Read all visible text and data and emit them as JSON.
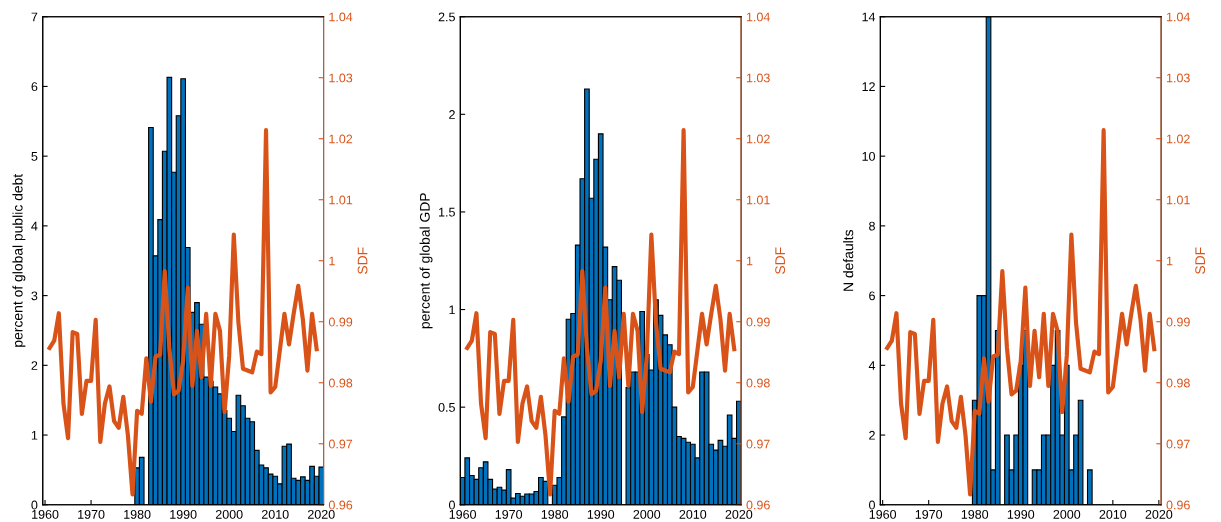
{
  "chart_data": [
    {
      "type": "bar",
      "ylabel": "percent of global public debt",
      "y2label": "SDF",
      "xlim": [
        1959.5,
        2020.5
      ],
      "xticks": [
        1960,
        1970,
        1980,
        1990,
        2000,
        2010,
        2020
      ],
      "ylim": [
        0,
        7
      ],
      "yticks": [
        0,
        1,
        2,
        3,
        4,
        5,
        6,
        7
      ],
      "y2lim": [
        0.96,
        1.04
      ],
      "y2ticks": [
        0.96,
        0.97,
        0.98,
        0.99,
        1,
        1.01,
        1.02,
        1.03,
        1.04
      ],
      "grid": false,
      "legend": false,
      "series": [
        {
          "color": "#0072bd",
          "x": [
            1980,
            1981,
            1982,
            1983,
            1984,
            1985,
            1986,
            1987,
            1988,
            1989,
            1990,
            1991,
            1992,
            1993,
            1994,
            1995,
            1996,
            1997,
            1998,
            1999,
            2000,
            2001,
            2002,
            2003,
            2004,
            2005,
            2006,
            2007,
            2008,
            2009,
            2010,
            2011,
            2012,
            2013,
            2014,
            2015,
            2016,
            2017,
            2018,
            2019,
            2020
          ],
          "values": [
            0.53,
            0.68,
            null,
            5.41,
            3.57,
            4.09,
            5.07,
            6.13,
            4.77,
            5.58,
            6.11,
            3.69,
            2.76,
            2.9,
            2.59,
            1.83,
            1.77,
            1.69,
            1.59,
            1.35,
            1.24,
            1.05,
            1.57,
            1.42,
            1.24,
            1.19,
            0.78,
            0.57,
            0.53,
            0.44,
            0.41,
            0.3,
            0.84,
            0.87,
            0.38,
            0.35,
            0.4,
            0.35,
            0.55,
            0.41,
            0.54
          ]
        },
        {
          "type": "line",
          "axis": "y2",
          "color": "#d95319",
          "x": [
            1961,
            1962,
            1963,
            1964,
            1965,
            1966,
            1967,
            1968,
            1969,
            1970,
            1971,
            1972,
            1973,
            1974,
            1975,
            1976,
            1977,
            1978,
            1979,
            1980,
            1981,
            1982,
            1983,
            1984,
            1985,
            1986,
            1987,
            1988,
            1989,
            1990,
            1991,
            1992,
            1993,
            1994,
            1995,
            1996,
            1997,
            1998,
            1999,
            2000,
            2001,
            2002,
            2003,
            2004,
            2005,
            2006,
            2007,
            2008,
            2009,
            2010,
            2011,
            2012,
            2013,
            2014,
            2015,
            2016,
            2017,
            2018,
            2019
          ],
          "values": [
            0.9857,
            0.9869,
            0.9914,
            0.9766,
            0.9709,
            0.9883,
            0.988,
            0.9749,
            0.9803,
            0.9803,
            0.9903,
            0.9703,
            0.9766,
            0.9794,
            0.9737,
            0.9726,
            0.9777,
            0.9714,
            0.9617,
            0.9754,
            0.9749,
            0.984,
            0.9769,
            0.9843,
            0.9846,
            0.9983,
            0.9857,
            0.9781,
            0.9787,
            0.9836,
            0.9956,
            0.9795,
            0.9885,
            0.9809,
            0.9913,
            0.9795,
            0.9913,
            0.9885,
            0.9752,
            0.9844,
            1.0043,
            0.9899,
            0.9823,
            0.982,
            0.9817,
            0.9851,
            0.9847,
            1.0214,
            0.9784,
            0.9793,
            0.9853,
            0.9913,
            0.9863,
            0.9913,
            0.9959,
            0.9904,
            0.982,
            0.9913,
            0.9855
          ]
        }
      ]
    },
    {
      "type": "bar",
      "ylabel": "percent of global GDP",
      "y2label": "SDF",
      "xlim": [
        1959.5,
        2020.5
      ],
      "xticks": [
        1960,
        1970,
        1980,
        1990,
        2000,
        2010,
        2020
      ],
      "ylim": [
        0,
        2.5
      ],
      "yticks": [
        0,
        0.5,
        1,
        1.5,
        2,
        2.5
      ],
      "y2lim": [
        0.96,
        1.04
      ],
      "y2ticks": [
        0.96,
        0.97,
        0.98,
        0.99,
        1,
        1.01,
        1.02,
        1.03,
        1.04
      ],
      "grid": false,
      "legend": false,
      "series": [
        {
          "color": "#0072bd",
          "x": [
            1960,
            1961,
            1962,
            1963,
            1964,
            1965,
            1966,
            1967,
            1968,
            1969,
            1970,
            1971,
            1972,
            1973,
            1974,
            1975,
            1976,
            1977,
            1978,
            1979,
            1980,
            1981,
            1982,
            1983,
            1984,
            1985,
            1986,
            1987,
            1988,
            1989,
            1990,
            1991,
            1992,
            1993,
            1994,
            1995,
            1996,
            1997,
            1998,
            1999,
            2000,
            2001,
            2002,
            2003,
            2004,
            2005,
            2006,
            2007,
            2008,
            2009,
            2010,
            2011,
            2012,
            2013,
            2014,
            2015,
            2016,
            2017,
            2018,
            2019,
            2020
          ],
          "values": [
            0.14,
            0.24,
            0.15,
            0.13,
            0.19,
            0.22,
            0.13,
            0.08,
            0.09,
            0.075,
            0.18,
            0.034,
            0.058,
            0.044,
            0.055,
            0.055,
            0.068,
            0.14,
            0.12,
            null,
            0.1,
            0.14,
            0.45,
            0.95,
            0.98,
            1.33,
            1.67,
            2.13,
            1.57,
            1.77,
            1.9,
            1.32,
            1.05,
            1.22,
            1.15,
            null,
            0.6,
            0.68,
            0.68,
            0.99,
            0.77,
            0.69,
            1.05,
            0.97,
            0.87,
            0.82,
            0.5,
            0.35,
            0.34,
            0.32,
            0.31,
            0.24,
            0.68,
            0.68,
            0.31,
            0.28,
            0.33,
            0.3,
            0.46,
            0.34,
            0.53
          ]
        },
        {
          "type": "line",
          "axis": "y2",
          "color": "#d95319",
          "x": [
            1961,
            1962,
            1963,
            1964,
            1965,
            1966,
            1967,
            1968,
            1969,
            1970,
            1971,
            1972,
            1973,
            1974,
            1975,
            1976,
            1977,
            1978,
            1979,
            1980,
            1981,
            1982,
            1983,
            1984,
            1985,
            1986,
            1987,
            1988,
            1989,
            1990,
            1991,
            1992,
            1993,
            1994,
            1995,
            1996,
            1997,
            1998,
            1999,
            2000,
            2001,
            2002,
            2003,
            2004,
            2005,
            2006,
            2007,
            2008,
            2009,
            2010,
            2011,
            2012,
            2013,
            2014,
            2015,
            2016,
            2017,
            2018,
            2019
          ],
          "values": [
            0.9857,
            0.9869,
            0.9914,
            0.9766,
            0.9709,
            0.9883,
            0.988,
            0.9749,
            0.9803,
            0.9803,
            0.9903,
            0.9703,
            0.9766,
            0.9794,
            0.9737,
            0.9726,
            0.9777,
            0.9714,
            0.9617,
            0.9754,
            0.9749,
            0.984,
            0.9769,
            0.9843,
            0.9846,
            0.9983,
            0.9857,
            0.9781,
            0.9787,
            0.9836,
            0.9956,
            0.9795,
            0.9885,
            0.9809,
            0.9913,
            0.9795,
            0.9913,
            0.9885,
            0.9752,
            0.9844,
            1.0043,
            0.9899,
            0.9823,
            0.982,
            0.9817,
            0.9851,
            0.9847,
            1.0214,
            0.9784,
            0.9793,
            0.9853,
            0.9913,
            0.9863,
            0.9913,
            0.9959,
            0.9904,
            0.982,
            0.9913,
            0.9855
          ]
        }
      ]
    },
    {
      "type": "bar",
      "ylabel": "N defaults",
      "y2label": "SDF",
      "xlim": [
        1959.5,
        2020.5
      ],
      "xticks": [
        1960,
        1970,
        1980,
        1990,
        2000,
        2010,
        2020
      ],
      "ylim": [
        0,
        14
      ],
      "yticks": [
        0,
        2,
        4,
        6,
        8,
        10,
        12,
        14
      ],
      "y2lim": [
        0.96,
        1.04
      ],
      "y2ticks": [
        0.96,
        0.97,
        0.98,
        0.99,
        1,
        1.01,
        1.02,
        1.03,
        1.04
      ],
      "grid": false,
      "legend": false,
      "series": [
        {
          "color": "#0072bd",
          "x": [
            1980,
            1981,
            1982,
            1983,
            1984,
            1985,
            1986,
            1987,
            1988,
            1989,
            1990,
            1991,
            1992,
            1993,
            1994,
            1995,
            1996,
            1997,
            1998,
            1999,
            2000,
            2001,
            2002,
            2003,
            2004,
            2005
          ],
          "values": [
            3,
            6,
            6,
            14,
            1,
            5,
            null,
            2,
            1,
            2,
            4,
            5,
            null,
            1,
            1,
            2,
            2,
            4,
            5,
            2,
            4,
            1,
            2,
            3,
            0,
            1
          ]
        },
        {
          "type": "line",
          "axis": "y2",
          "color": "#d95319",
          "x": [
            1961,
            1962,
            1963,
            1964,
            1965,
            1966,
            1967,
            1968,
            1969,
            1970,
            1971,
            1972,
            1973,
            1974,
            1975,
            1976,
            1977,
            1978,
            1979,
            1980,
            1981,
            1982,
            1983,
            1984,
            1985,
            1986,
            1987,
            1988,
            1989,
            1990,
            1991,
            1992,
            1993,
            1994,
            1995,
            1996,
            1997,
            1998,
            1999,
            2000,
            2001,
            2002,
            2003,
            2004,
            2005,
            2006,
            2007,
            2008,
            2009,
            2010,
            2011,
            2012,
            2013,
            2014,
            2015,
            2016,
            2017,
            2018,
            2019
          ],
          "values": [
            0.9857,
            0.9869,
            0.9914,
            0.9766,
            0.9709,
            0.9883,
            0.988,
            0.9749,
            0.9803,
            0.9803,
            0.9903,
            0.9703,
            0.9766,
            0.9794,
            0.9737,
            0.9726,
            0.9777,
            0.9714,
            0.9617,
            0.9754,
            0.9749,
            0.984,
            0.9769,
            0.9843,
            0.9846,
            0.9983,
            0.9857,
            0.9781,
            0.9787,
            0.9836,
            0.9956,
            0.9795,
            0.9885,
            0.9809,
            0.9913,
            0.9795,
            0.9913,
            0.9885,
            0.9752,
            0.9844,
            1.0043,
            0.9899,
            0.9823,
            0.982,
            0.9817,
            0.9851,
            0.9847,
            1.0214,
            0.9784,
            0.9793,
            0.9853,
            0.9913,
            0.9863,
            0.9913,
            0.9959,
            0.9904,
            0.982,
            0.9913,
            0.9855
          ]
        }
      ]
    }
  ]
}
